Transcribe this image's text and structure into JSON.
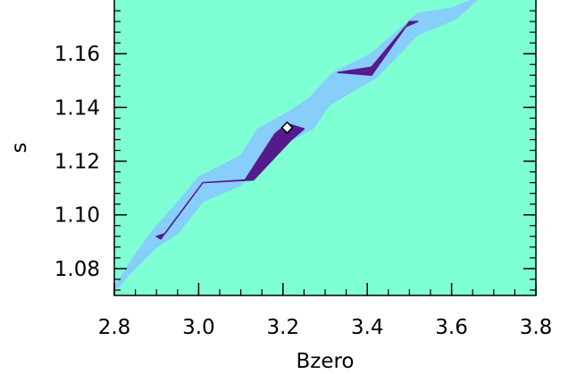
{
  "chart_data": {
    "type": "contour",
    "xlabel": "Bzero",
    "ylabel": "s",
    "xlim": [
      2.8,
      3.8
    ],
    "ylim": [
      1.07,
      1.18
    ],
    "xticks": [
      2.8,
      3.0,
      3.2,
      3.4,
      3.6,
      3.8
    ],
    "xtick_labels": [
      "2.8",
      "3.0",
      "3.2",
      "3.4",
      "3.6",
      "3.8"
    ],
    "yticks": [
      1.08,
      1.1,
      1.12,
      1.14,
      1.16
    ],
    "ytick_labels": [
      "1.08",
      "1.10",
      "1.12",
      "1.14",
      "1.16"
    ],
    "grid": false,
    "colors": {
      "background_level": "#7fffd4",
      "outer_level": "#87cefa",
      "inner_level": "#551a8b",
      "best_fit_marker": "#ffffff"
    },
    "levels": [
      {
        "name": "outer",
        "polygon": [
          [
            2.8,
            1.073
          ],
          [
            2.84,
            1.083
          ],
          [
            2.89,
            1.094
          ],
          [
            2.93,
            1.101
          ],
          [
            3.0,
            1.114
          ],
          [
            3.1,
            1.122
          ],
          [
            3.14,
            1.132
          ],
          [
            3.21,
            1.138
          ],
          [
            3.26,
            1.143
          ],
          [
            3.32,
            1.153
          ],
          [
            3.41,
            1.16
          ],
          [
            3.52,
            1.175
          ],
          [
            3.6,
            1.177
          ],
          [
            3.65,
            1.18
          ],
          [
            3.66,
            1.18
          ],
          [
            3.61,
            1.173
          ],
          [
            3.52,
            1.167
          ],
          [
            3.42,
            1.151
          ],
          [
            3.31,
            1.141
          ],
          [
            3.27,
            1.132
          ],
          [
            3.21,
            1.127
          ],
          [
            3.16,
            1.121
          ],
          [
            3.1,
            1.111
          ],
          [
            3.01,
            1.105
          ],
          [
            2.95,
            1.093
          ],
          [
            2.9,
            1.088
          ],
          [
            2.83,
            1.077
          ],
          [
            2.81,
            1.073
          ]
        ]
      },
      {
        "name": "inner-1",
        "polygon": [
          [
            2.9,
            1.092
          ],
          [
            2.92,
            1.093
          ],
          [
            3.01,
            1.112
          ],
          [
            3.11,
            1.113
          ],
          [
            3.18,
            1.13
          ],
          [
            3.21,
            1.134
          ],
          [
            3.25,
            1.132
          ],
          [
            3.22,
            1.128
          ],
          [
            3.13,
            1.113
          ],
          [
            3.01,
            1.112
          ],
          [
            2.91,
            1.091
          ]
        ]
      },
      {
        "name": "inner-2",
        "polygon": [
          [
            3.33,
            1.153
          ],
          [
            3.41,
            1.152
          ],
          [
            3.5,
            1.172
          ],
          [
            3.52,
            1.172
          ],
          [
            3.49,
            1.17
          ],
          [
            3.41,
            1.155
          ]
        ]
      }
    ],
    "best_fit": {
      "x": 3.21,
      "y": 1.1325
    }
  }
}
